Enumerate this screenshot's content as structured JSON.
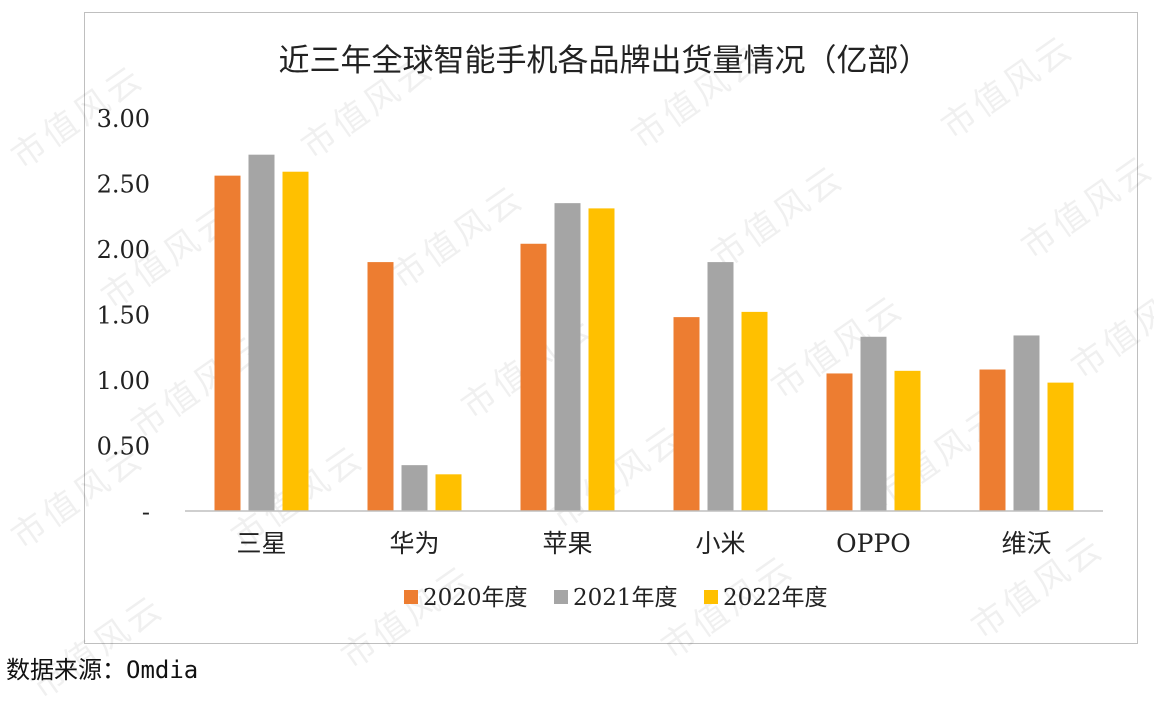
{
  "source_note": "数据来源：Omdia",
  "watermark_text": "市值风云",
  "chart_data": {
    "type": "bar",
    "title": "近三年全球智能手机各品牌出货量情况（亿部）",
    "categories": [
      "三星",
      "华为",
      "苹果",
      "小米",
      "OPPO",
      "维沃"
    ],
    "series": [
      {
        "name": "2020年度",
        "color": "#ED7D31",
        "values": [
          2.56,
          1.9,
          2.04,
          1.48,
          1.05,
          1.08
        ]
      },
      {
        "name": "2021年度",
        "color": "#A5A5A5",
        "values": [
          2.72,
          0.35,
          2.35,
          1.9,
          1.33,
          1.34
        ]
      },
      {
        "name": "2022年度",
        "color": "#FFC000",
        "values": [
          2.59,
          0.28,
          2.31,
          1.52,
          1.07,
          0.98
        ]
      }
    ],
    "ylim": [
      0,
      3.0
    ],
    "yticks": [
      0,
      0.5,
      1.0,
      1.5,
      2.0,
      2.5,
      3.0
    ],
    "ytick_labels": [
      "-",
      "0.50",
      "1.00",
      "1.50",
      "2.00",
      "2.50",
      "3.00"
    ],
    "grid": false,
    "legend_position": "bottom"
  }
}
